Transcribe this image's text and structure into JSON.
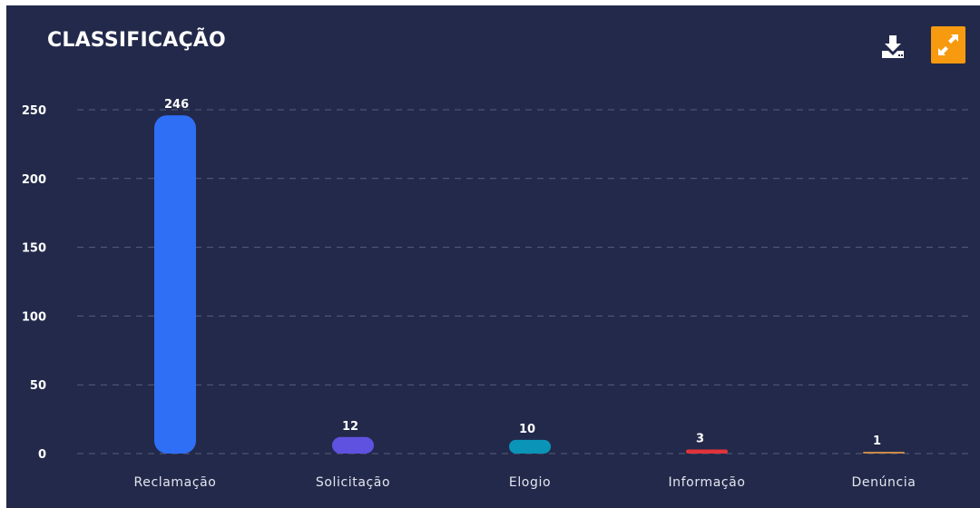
{
  "panel": {
    "title": "CLASSIFICAÇÃO",
    "background_color": "#23294a",
    "toolbar": {
      "download_icon": "download-icon",
      "expand_icon": "expand-icon",
      "expand_button_color": "#f79a10"
    }
  },
  "chart_data": {
    "type": "bar",
    "title": "CLASSIFICAÇÃO",
    "categories": [
      "Reclamação",
      "Solicitação",
      "Elogio",
      "Informação",
      "Denúncia"
    ],
    "values": [
      246,
      12,
      10,
      3,
      1
    ],
    "data_labels": [
      "246",
      "12",
      "10",
      "3",
      "1"
    ],
    "colors": [
      "#2e6ff5",
      "#6052e0",
      "#0a94b8",
      "#e0343a",
      "#c98a4a"
    ],
    "ylim": [
      0,
      250
    ],
    "yticks": [
      0,
      50,
      100,
      150,
      200,
      250
    ],
    "grid": true,
    "legend": "none"
  }
}
